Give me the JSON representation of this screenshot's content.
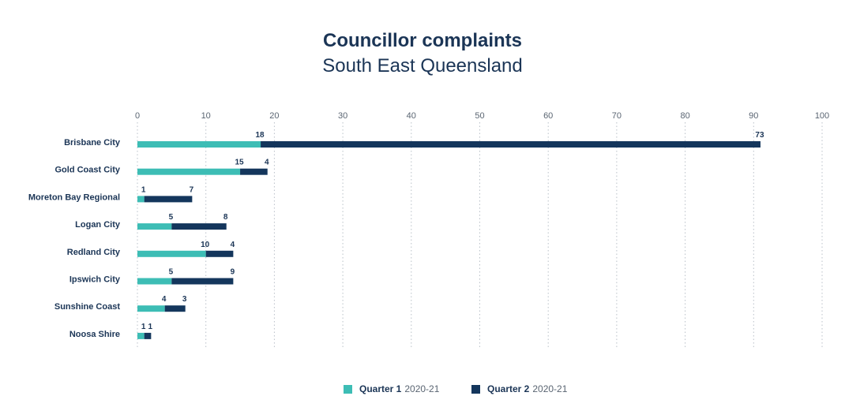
{
  "chart_data": {
    "type": "bar",
    "orientation": "horizontal",
    "stacked": true,
    "title": "Councillor complaints",
    "subtitle": "South East Queensland",
    "categories": [
      "Brisbane City",
      "Gold Coast City",
      "Moreton Bay Regional",
      "Logan City",
      "Redland City",
      "Ipswich City",
      "Sunshine Coast",
      "Noosa Shire"
    ],
    "series": [
      {
        "name": "Quarter 1",
        "period": "2020-21",
        "color": "#3dbdb5",
        "values": [
          18,
          15,
          1,
          5,
          10,
          5,
          4,
          1
        ]
      },
      {
        "name": "Quarter 2",
        "period": "2020-21",
        "color": "#14365c",
        "values": [
          73,
          4,
          7,
          8,
          4,
          9,
          3,
          1
        ]
      }
    ],
    "xlim": [
      0,
      100
    ],
    "xticks": [
      "0",
      "10",
      "20",
      "30",
      "40",
      "50",
      "60",
      "70",
      "80",
      "90",
      "100"
    ],
    "grid": true,
    "axis_position": "top",
    "legend_position": "bottom"
  }
}
